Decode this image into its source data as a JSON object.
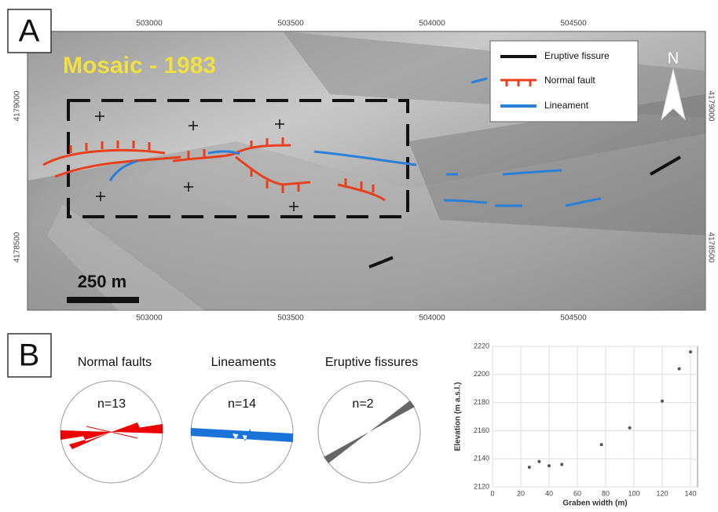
{
  "panel_a": {
    "label": "A",
    "title": "Mosaic - 1983",
    "legend": [
      "Eruptive fissure",
      "Normal fault",
      "Lineament"
    ],
    "north": "N",
    "scale_bar": "250 m",
    "x_ticks": [
      503000,
      503500,
      504000,
      504500
    ],
    "y_ticks": [
      4179000,
      4178500
    ]
  },
  "panel_b": {
    "label": "B",
    "roses": [
      {
        "title": "Normal faults",
        "n": "n=13"
      },
      {
        "title": "Lineaments",
        "n": "n=14"
      },
      {
        "title": "Eruptive fissures",
        "n": "n=2"
      }
    ]
  },
  "chart_data": {
    "type": "scatter",
    "x_label": "Graben width (m)",
    "y_label": "Elevation (m a.s.l.)",
    "x": [
      26,
      33,
      40,
      49,
      77,
      97,
      120,
      132,
      140
    ],
    "values": [
      2134,
      2138,
      2135,
      2136,
      2150,
      2162,
      2181,
      2204,
      2216
    ],
    "color": "#555555",
    "xlim": [
      0,
      145
    ],
    "ylim": [
      2120,
      2220
    ],
    "xticks": [
      0,
      20,
      40,
      60,
      80,
      100,
      120,
      140
    ],
    "yticks": [
      2120,
      2140,
      2160,
      2180,
      2200,
      2220
    ],
    "grid": true
  }
}
